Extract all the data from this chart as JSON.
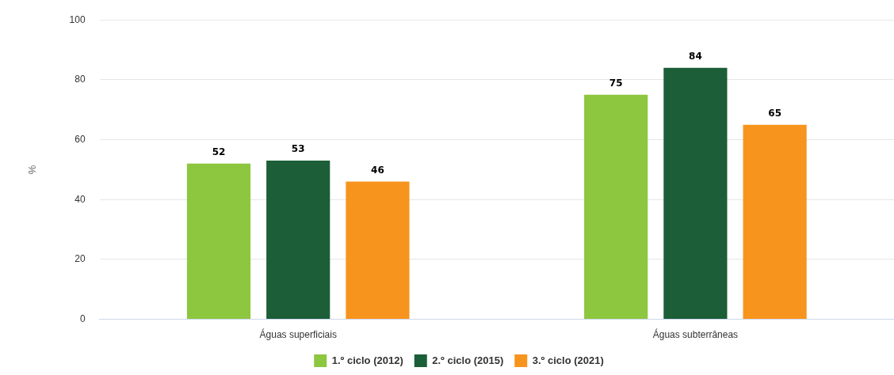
{
  "chart_data": {
    "type": "bar",
    "ylabel": "%",
    "categories": [
      "Águas superficiais",
      "Águas subterrâneas"
    ],
    "series": [
      {
        "name": "1.º ciclo (2012)",
        "color": "#8dc63f",
        "values": [
          52,
          75
        ]
      },
      {
        "name": "2.º ciclo (2015)",
        "color": "#1b5e37",
        "values": [
          53,
          84
        ]
      },
      {
        "name": "3.º ciclo (2021)",
        "color": "#f7941d",
        "values": [
          46,
          65
        ]
      }
    ],
    "ylim": [
      0,
      100
    ],
    "yticks": [
      0,
      20,
      40,
      60,
      80,
      100
    ],
    "grid": "y",
    "legend": "bottom",
    "data_labels": true
  }
}
